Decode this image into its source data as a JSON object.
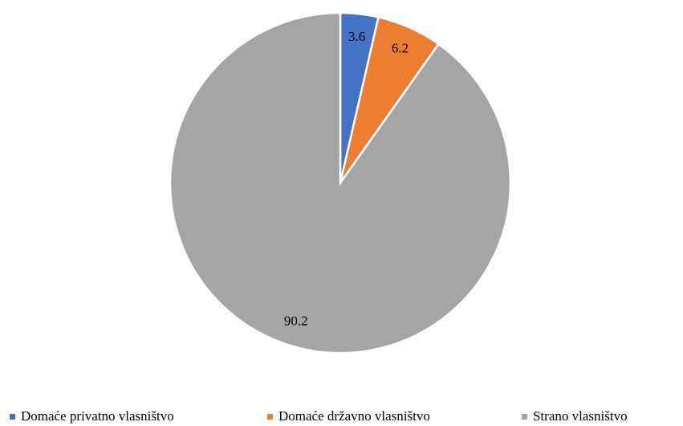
{
  "chart_data": {
    "type": "pie",
    "categories": [
      "Domaće privatno vlasništvo",
      "Domaće državno vlasništvo",
      "Strano vlasništvo"
    ],
    "values": [
      3.6,
      6.2,
      90.2
    ],
    "colors": [
      "#4472c4",
      "#ed7d31",
      "#a5a5a5"
    ],
    "legend": "bottom"
  }
}
